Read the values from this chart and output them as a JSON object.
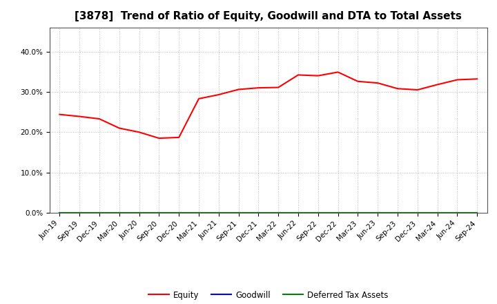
{
  "title": "[3878]  Trend of Ratio of Equity, Goodwill and DTA to Total Assets",
  "x_labels": [
    "Jun-19",
    "Sep-19",
    "Dec-19",
    "Mar-20",
    "Jun-20",
    "Sep-20",
    "Dec-20",
    "Mar-21",
    "Jun-21",
    "Sep-21",
    "Dec-21",
    "Mar-22",
    "Jun-22",
    "Sep-22",
    "Dec-22",
    "Mar-23",
    "Jun-23",
    "Sep-23",
    "Dec-23",
    "Mar-24",
    "Jun-24",
    "Sep-24"
  ],
  "equity": [
    0.244,
    0.239,
    0.233,
    0.21,
    0.2,
    0.185,
    0.187,
    0.283,
    0.293,
    0.306,
    0.31,
    0.311,
    0.342,
    0.34,
    0.349,
    0.326,
    0.322,
    0.308,
    0.305,
    0.318,
    0.33,
    0.332
  ],
  "goodwill": [
    0.0,
    0.0,
    0.0,
    0.0,
    0.0,
    0.0,
    0.0,
    0.0,
    0.0,
    0.0,
    0.0,
    0.0,
    0.0,
    0.0,
    0.0,
    0.0,
    0.0,
    0.0,
    0.0,
    0.0,
    0.0,
    0.0
  ],
  "dta": [
    0.0,
    0.0,
    0.0,
    0.0,
    0.0,
    0.0,
    0.0,
    0.0,
    0.0,
    0.0,
    0.0,
    0.0,
    0.0,
    0.0,
    0.0,
    0.0,
    0.0,
    0.0,
    0.0,
    0.0,
    0.0,
    0.0
  ],
  "equity_color": "#FF0000",
  "goodwill_color": "#0000FF",
  "dta_color": "#008000",
  "ylim": [
    0.0,
    0.46
  ],
  "yticks": [
    0.0,
    0.1,
    0.2,
    0.3,
    0.4
  ],
  "background_color": "#FFFFFF",
  "plot_bg_color": "#FFFFFF",
  "grid_color": "#AAAAAA",
  "title_fontsize": 11,
  "tick_fontsize": 7.5,
  "legend_labels": [
    "Equity",
    "Goodwill",
    "Deferred Tax Assets"
  ]
}
